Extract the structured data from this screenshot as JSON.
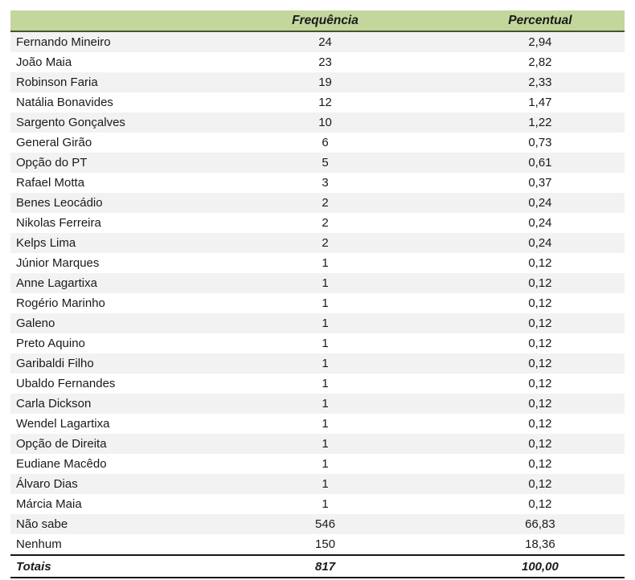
{
  "colors": {
    "header_bg": "#c3d69b",
    "header_border": "#47542e",
    "stripe_bg": "#f2f2f2",
    "totals_border": "#161616",
    "text": "#1a1a1a"
  },
  "chart_data": {
    "type": "table",
    "columns": [
      {
        "key": "label",
        "label": ""
      },
      {
        "key": "frequencia",
        "label": "Frequência"
      },
      {
        "key": "percentual",
        "label": "Percentual"
      }
    ],
    "rows": [
      {
        "label": "Fernando Mineiro",
        "frequencia": "24",
        "percentual": "2,94"
      },
      {
        "label": "João Maia",
        "frequencia": "23",
        "percentual": "2,82"
      },
      {
        "label": "Robinson Faria",
        "frequencia": "19",
        "percentual": "2,33"
      },
      {
        "label": "Natália Bonavides",
        "frequencia": "12",
        "percentual": "1,47"
      },
      {
        "label": "Sargento Gonçalves",
        "frequencia": "10",
        "percentual": "1,22"
      },
      {
        "label": "General Girão",
        "frequencia": "6",
        "percentual": "0,73"
      },
      {
        "label": "Opção do PT",
        "frequencia": "5",
        "percentual": "0,61"
      },
      {
        "label": "Rafael Motta",
        "frequencia": "3",
        "percentual": "0,37"
      },
      {
        "label": "Benes Leocádio",
        "frequencia": "2",
        "percentual": "0,24"
      },
      {
        "label": "Nikolas Ferreira",
        "frequencia": "2",
        "percentual": "0,24"
      },
      {
        "label": "Kelps Lima",
        "frequencia": "2",
        "percentual": "0,24"
      },
      {
        "label": "Júnior Marques",
        "frequencia": "1",
        "percentual": "0,12"
      },
      {
        "label": "Anne Lagartixa",
        "frequencia": "1",
        "percentual": "0,12"
      },
      {
        "label": "Rogério Marinho",
        "frequencia": "1",
        "percentual": "0,12"
      },
      {
        "label": "Galeno",
        "frequencia": "1",
        "percentual": "0,12"
      },
      {
        "label": "Preto Aquino",
        "frequencia": "1",
        "percentual": "0,12"
      },
      {
        "label": "Garibaldi Filho",
        "frequencia": "1",
        "percentual": "0,12"
      },
      {
        "label": "Ubaldo Fernandes",
        "frequencia": "1",
        "percentual": "0,12"
      },
      {
        "label": "Carla Dickson",
        "frequencia": "1",
        "percentual": "0,12"
      },
      {
        "label": "Wendel Lagartixa",
        "frequencia": "1",
        "percentual": "0,12"
      },
      {
        "label": "Opção de Direita",
        "frequencia": "1",
        "percentual": "0,12"
      },
      {
        "label": "Eudiane Macêdo",
        "frequencia": "1",
        "percentual": "0,12"
      },
      {
        "label": "Álvaro Dias",
        "frequencia": "1",
        "percentual": "0,12"
      },
      {
        "label": "Márcia Maia",
        "frequencia": "1",
        "percentual": "0,12"
      },
      {
        "label": "Não sabe",
        "frequencia": "546",
        "percentual": "66,83"
      },
      {
        "label": "Nenhum",
        "frequencia": "150",
        "percentual": "18,36"
      }
    ],
    "totals": {
      "label": "Totais",
      "frequencia": "817",
      "percentual": "100,00"
    }
  }
}
